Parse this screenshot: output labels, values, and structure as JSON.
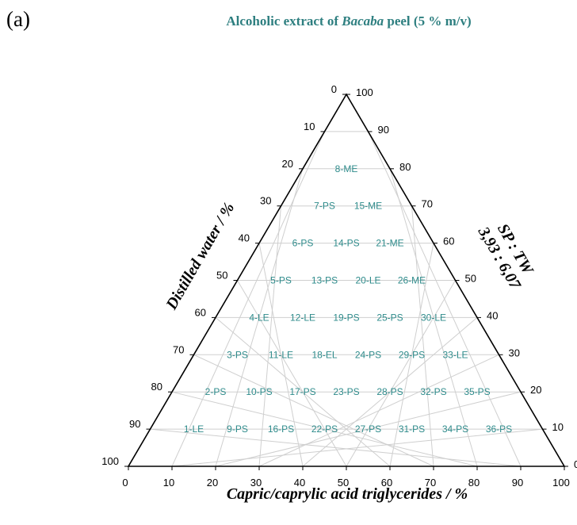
{
  "panel_label": "(a)",
  "title": {
    "prefix": "Alcoholic extract of ",
    "italic": "Bacaba",
    "suffix": " peel (5 % m/v)"
  },
  "chart_data": {
    "type": "ternary",
    "axes": {
      "bottom": {
        "label": "Capric/caprylic acid triglycerides / %",
        "ticks": [
          "0",
          "10",
          "20",
          "30",
          "40",
          "50",
          "60",
          "70",
          "80",
          "90",
          "100"
        ]
      },
      "left": {
        "label": "Distilled water  / %",
        "ticks": [
          "0",
          "10",
          "20",
          "30",
          "40",
          "50",
          "60",
          "70",
          "80",
          "90",
          "100"
        ]
      },
      "right": {
        "label_line1": "SP : TW",
        "label_line2": "3,93 : 6,07",
        "ticks": [
          "0",
          "10",
          "20",
          "30",
          "40",
          "50",
          "60",
          "70",
          "80",
          "90",
          "100"
        ]
      }
    },
    "grid": true,
    "points": [
      {
        "label": "8-ME",
        "water": 20,
        "oil": 10
      },
      {
        "label": "7-PS",
        "water": 30,
        "oil": 10
      },
      {
        "label": "15-ME",
        "water": 30,
        "oil": 20
      },
      {
        "label": "6-PS",
        "water": 40,
        "oil": 10
      },
      {
        "label": "14-PS",
        "water": 40,
        "oil": 20
      },
      {
        "label": "21-ME",
        "water": 40,
        "oil": 30
      },
      {
        "label": "5-PS",
        "water": 50,
        "oil": 10
      },
      {
        "label": "13-PS",
        "water": 50,
        "oil": 20
      },
      {
        "label": "20-LE",
        "water": 50,
        "oil": 30
      },
      {
        "label": "26-ME",
        "water": 50,
        "oil": 40
      },
      {
        "label": "4-LE",
        "water": 60,
        "oil": 10
      },
      {
        "label": "12-LE",
        "water": 60,
        "oil": 20
      },
      {
        "label": "19-PS",
        "water": 60,
        "oil": 30
      },
      {
        "label": "25-PS",
        "water": 60,
        "oil": 40
      },
      {
        "label": "30-LE",
        "water": 60,
        "oil": 50
      },
      {
        "label": "3-PS",
        "water": 70,
        "oil": 10
      },
      {
        "label": "11-LE",
        "water": 70,
        "oil": 20
      },
      {
        "label": "18-EL",
        "water": 70,
        "oil": 30
      },
      {
        "label": "24-PS",
        "water": 70,
        "oil": 40
      },
      {
        "label": "29-PS",
        "water": 70,
        "oil": 50
      },
      {
        "label": "33-LE",
        "water": 70,
        "oil": 60
      },
      {
        "label": "2-PS",
        "water": 80,
        "oil": 10
      },
      {
        "label": "10-PS",
        "water": 80,
        "oil": 20
      },
      {
        "label": "17-PS",
        "water": 80,
        "oil": 30
      },
      {
        "label": "23-PS",
        "water": 80,
        "oil": 40
      },
      {
        "label": "28-PS",
        "water": 80,
        "oil": 50
      },
      {
        "label": "32-PS",
        "water": 80,
        "oil": 60
      },
      {
        "label": "35-PS",
        "water": 80,
        "oil": 70
      },
      {
        "label": "1-LE",
        "water": 90,
        "oil": 10
      },
      {
        "label": "9-PS",
        "water": 90,
        "oil": 20
      },
      {
        "label": "16-PS",
        "water": 90,
        "oil": 30
      },
      {
        "label": "22-PS",
        "water": 90,
        "oil": 40
      },
      {
        "label": "27-PS",
        "water": 90,
        "oil": 50
      },
      {
        "label": "31-PS",
        "water": 90,
        "oil": 60
      },
      {
        "label": "34-PS",
        "water": 90,
        "oil": 70
      },
      {
        "label": "36-PS",
        "water": 90,
        "oil": 80
      }
    ]
  }
}
